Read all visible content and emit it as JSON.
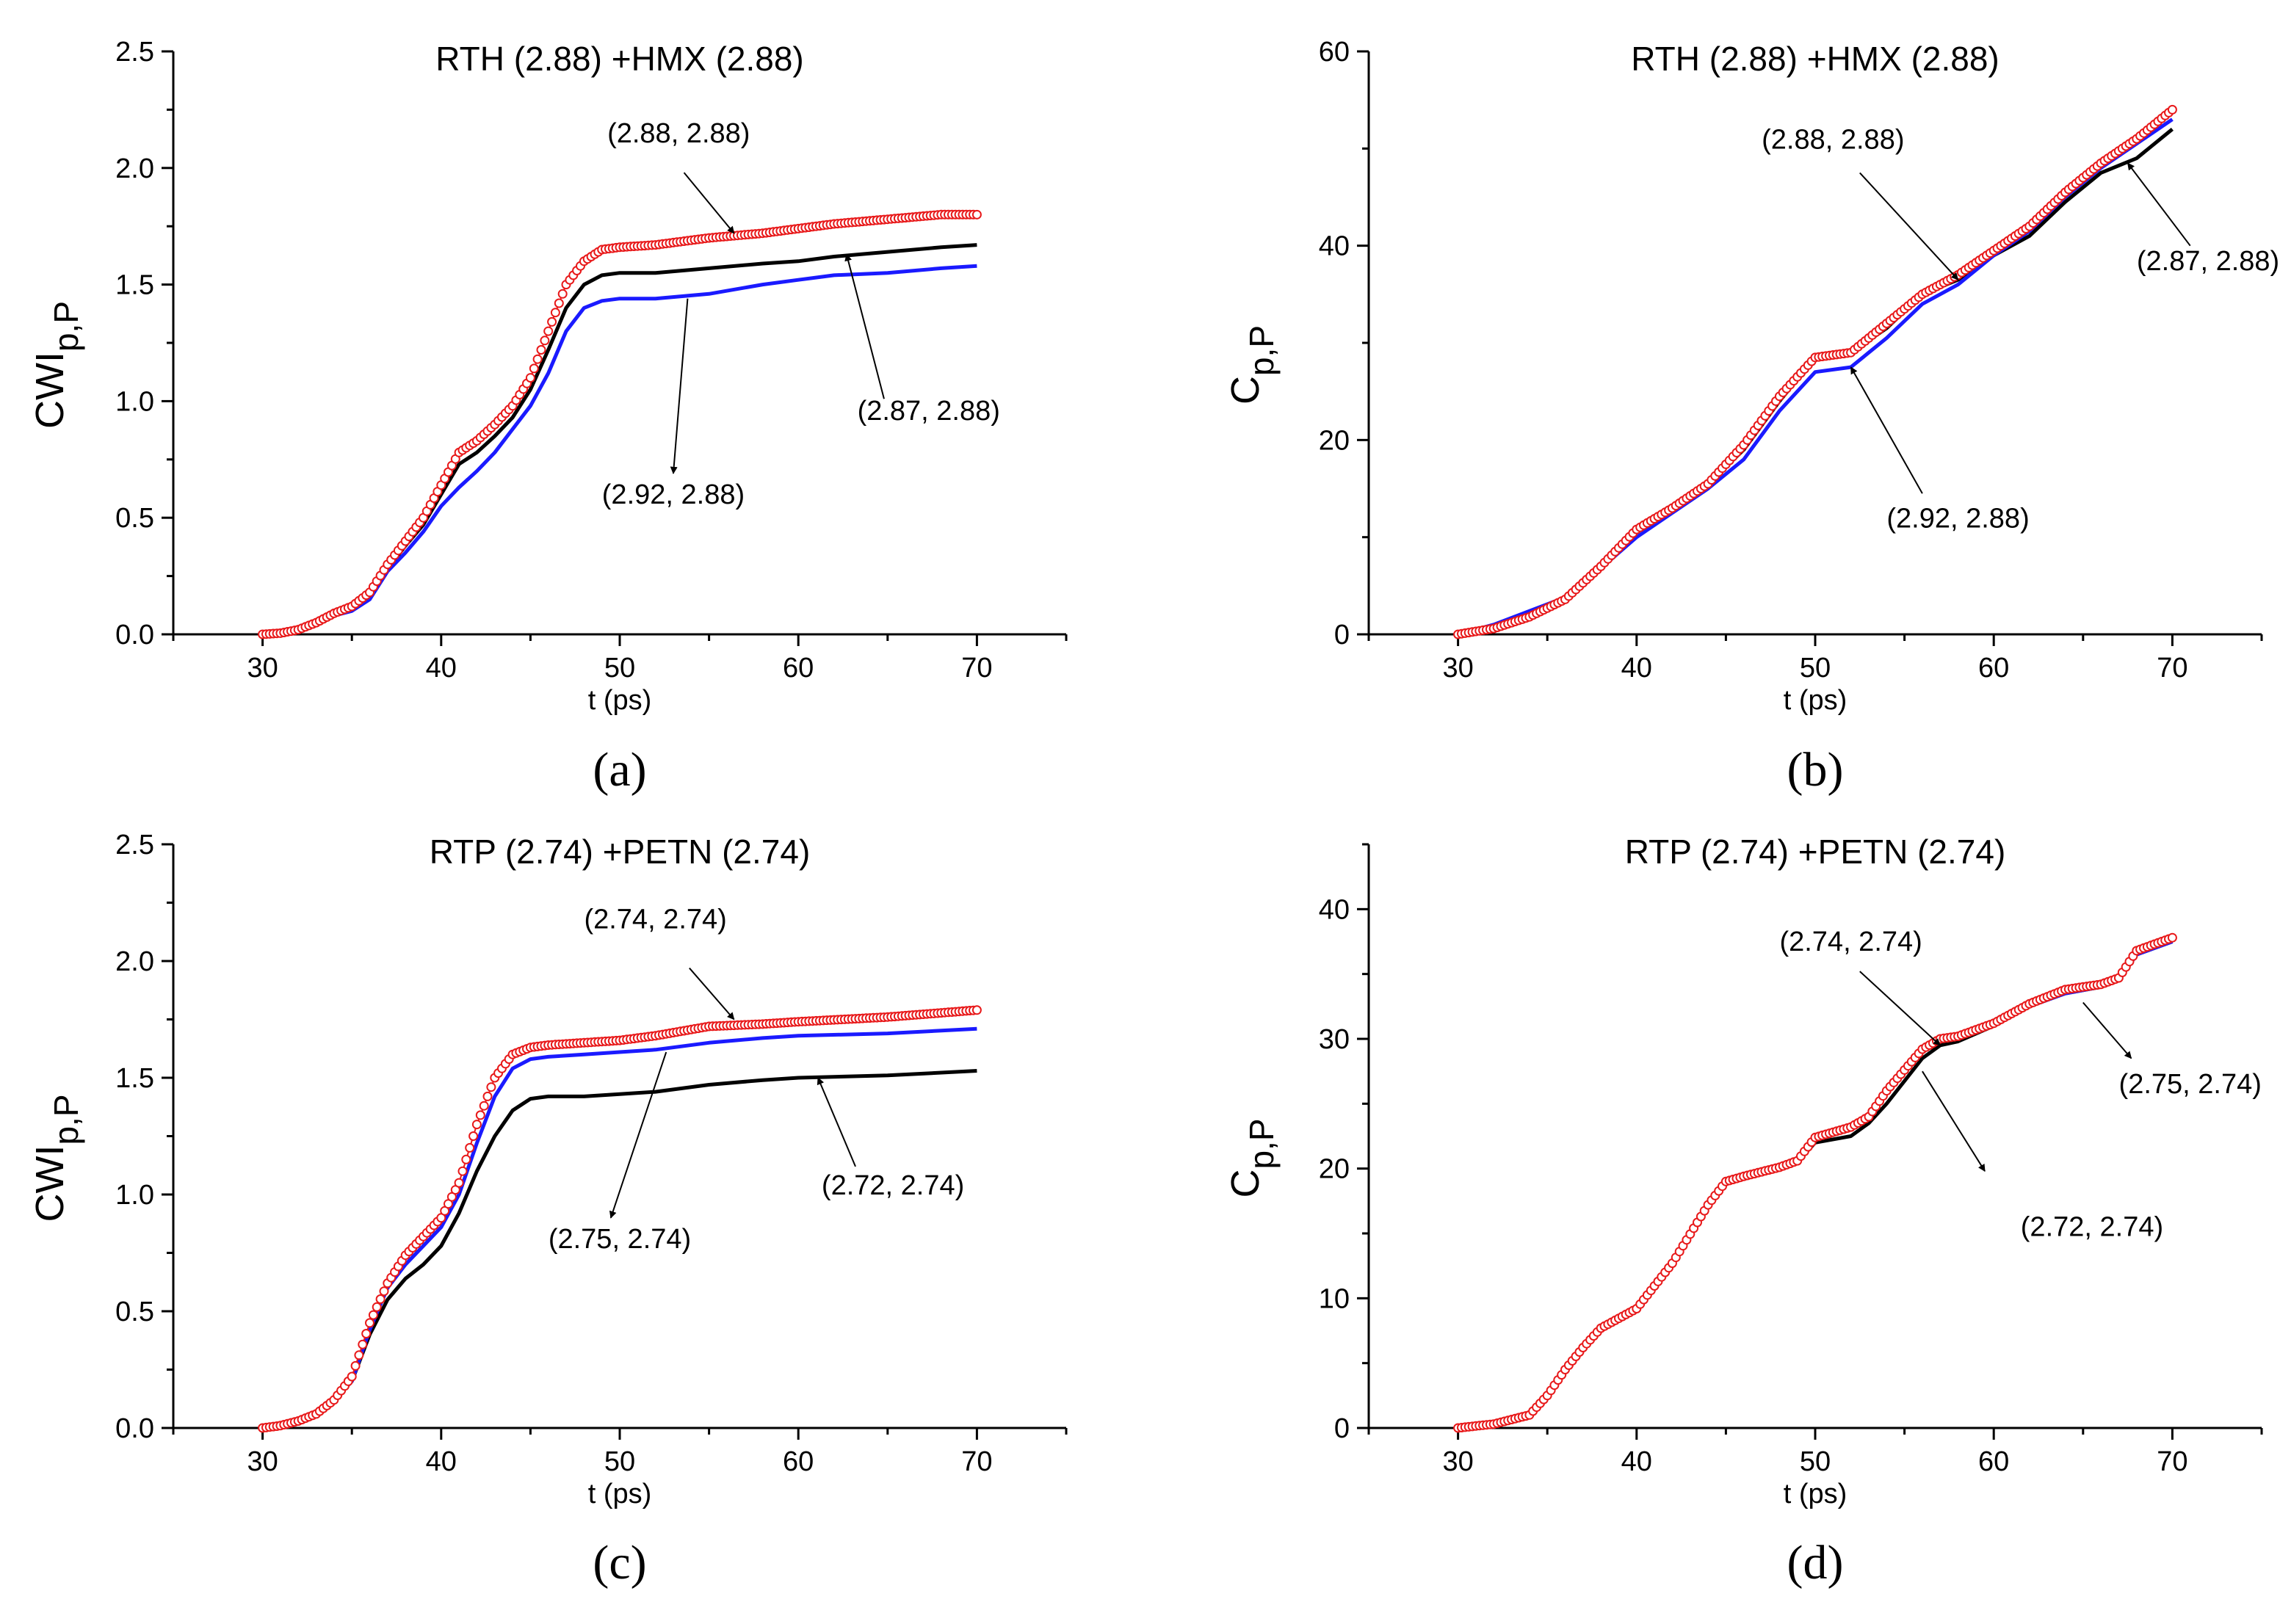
{
  "colors": {
    "black": "#000000",
    "blue": "#1a1aff",
    "red": "#e8191a",
    "axis": "#000000"
  },
  "chart_data": [
    {
      "panel": "(a)",
      "type": "line",
      "title": "RTH (2.88) +HMX (2.88)",
      "xlabel": "t (ps)",
      "ylabel": "CWI",
      "ylabel_sub": "p,P",
      "xlim": [
        25,
        75
      ],
      "ylim": [
        0,
        2.5
      ],
      "xticks": [
        30,
        40,
        50,
        60,
        70
      ],
      "yticks": [
        0.0,
        0.5,
        1.0,
        1.5,
        2.0,
        2.5
      ],
      "ytick_labels": [
        "0.0",
        "0.5",
        "1.0",
        "1.5",
        "2.0",
        "2.5"
      ],
      "series": [
        {
          "name": "(2.87, 2.88)",
          "color": "black",
          "marker": "none",
          "x": [
            30,
            31,
            32,
            33,
            34,
            35,
            36,
            37,
            38,
            39,
            40,
            41,
            42,
            43,
            44,
            45,
            46,
            47,
            48,
            49,
            50,
            52,
            55,
            58,
            60,
            62,
            65,
            68,
            70
          ],
          "y": [
            0,
            0.005,
            0.02,
            0.05,
            0.08,
            0.11,
            0.17,
            0.28,
            0.38,
            0.47,
            0.6,
            0.73,
            0.78,
            0.85,
            0.93,
            1.05,
            1.22,
            1.4,
            1.5,
            1.54,
            1.55,
            1.55,
            1.57,
            1.59,
            1.6,
            1.62,
            1.64,
            1.66,
            1.67
          ]
        },
        {
          "name": "(2.92, 2.88)",
          "color": "blue",
          "marker": "none",
          "x": [
            30,
            31,
            32,
            33,
            34,
            35,
            36,
            37,
            38,
            39,
            40,
            41,
            42,
            43,
            44,
            45,
            46,
            47,
            48,
            49,
            50,
            52,
            55,
            58,
            60,
            62,
            65,
            68,
            70
          ],
          "y": [
            0,
            0.005,
            0.02,
            0.05,
            0.08,
            0.1,
            0.15,
            0.27,
            0.35,
            0.44,
            0.55,
            0.63,
            0.7,
            0.78,
            0.88,
            0.98,
            1.12,
            1.3,
            1.4,
            1.43,
            1.44,
            1.44,
            1.46,
            1.5,
            1.52,
            1.54,
            1.55,
            1.57,
            1.58
          ]
        },
        {
          "name": "(2.88, 2.88)",
          "color": "red",
          "marker": "circle",
          "x": [
            30,
            31,
            32,
            33,
            34,
            35,
            36,
            37,
            38,
            39,
            40,
            41,
            42,
            43,
            44,
            45,
            46,
            47,
            48,
            49,
            50,
            52,
            55,
            58,
            60,
            62,
            65,
            68,
            70
          ],
          "y": [
            0,
            0.005,
            0.02,
            0.05,
            0.09,
            0.12,
            0.18,
            0.3,
            0.4,
            0.5,
            0.64,
            0.78,
            0.83,
            0.9,
            0.98,
            1.1,
            1.3,
            1.5,
            1.6,
            1.65,
            1.66,
            1.67,
            1.7,
            1.72,
            1.74,
            1.76,
            1.78,
            1.8,
            1.8
          ]
        }
      ],
      "annotations": [
        {
          "text": "(2.88, 2.88)",
          "label_at": [
            53.3,
            2.11
          ],
          "arrow_from": [
            53.6,
            1.98
          ],
          "arrow_to": [
            56.4,
            1.72
          ]
        },
        {
          "text": "(2.87, 2.88)",
          "label_at": [
            67.3,
            0.92
          ],
          "arrow_from": [
            64.8,
            1.01
          ],
          "arrow_to": [
            62.7,
            1.63
          ]
        },
        {
          "text": "(2.92, 2.88)",
          "label_at": [
            53.0,
            0.56
          ],
          "arrow_from": [
            53.8,
            1.44
          ],
          "arrow_to": [
            53.0,
            0.69
          ]
        }
      ]
    },
    {
      "panel": "(b)",
      "type": "line",
      "title": "RTH (2.88) +HMX (2.88)",
      "xlabel": "t (ps)",
      "ylabel": "C",
      "ylabel_sub": "p,P",
      "xlim": [
        25,
        75
      ],
      "ylim": [
        0,
        60
      ],
      "xticks": [
        30,
        40,
        50,
        60,
        70
      ],
      "yticks": [
        0,
        20,
        40,
        60
      ],
      "ytick_labels": [
        "0",
        "20",
        "40",
        "60"
      ],
      "series": [
        {
          "name": "(2.87, 2.88)",
          "color": "black",
          "marker": "none",
          "x": [
            30,
            32,
            34,
            36,
            38,
            40,
            42,
            44,
            46,
            48,
            50,
            52,
            54,
            56,
            58,
            60,
            62,
            64,
            66,
            68,
            70
          ],
          "y": [
            0,
            0.8,
            2.0,
            3.8,
            6.8,
            10.5,
            13.0,
            15.5,
            19.0,
            24.0,
            28.5,
            29.0,
            31.5,
            35.0,
            36.5,
            39.0,
            41.0,
            44.5,
            47.5,
            49.0,
            52.0
          ]
        },
        {
          "name": "(2.92, 2.88)",
          "color": "blue",
          "marker": "none",
          "x": [
            30,
            32,
            34,
            36,
            38,
            40,
            42,
            44,
            46,
            48,
            50,
            52,
            54,
            56,
            58,
            60,
            62,
            64,
            66,
            68,
            70
          ],
          "y": [
            0,
            1.0,
            2.4,
            3.8,
            6.8,
            10.0,
            12.5,
            15.0,
            18.0,
            23.0,
            27.0,
            27.5,
            30.5,
            34.0,
            36.0,
            39.0,
            41.5,
            45.0,
            48.0,
            50.5,
            53.0
          ]
        },
        {
          "name": "(2.88, 2.88)",
          "color": "red",
          "marker": "circle",
          "x": [
            30,
            32,
            34,
            36,
            38,
            40,
            42,
            44,
            46,
            48,
            50,
            52,
            54,
            56,
            58,
            60,
            62,
            64,
            66,
            68,
            70
          ],
          "y": [
            0,
            0.6,
            1.8,
            3.6,
            7.0,
            10.8,
            13.0,
            15.5,
            19.5,
            24.5,
            28.5,
            29.0,
            32.0,
            35.0,
            37.0,
            39.5,
            42.0,
            45.5,
            48.5,
            51.0,
            54.0
          ]
        }
      ],
      "annotations": [
        {
          "text": "(2.88, 2.88)",
          "label_at": [
            51.0,
            50.0
          ],
          "arrow_from": [
            52.5,
            47.5
          ],
          "arrow_to": [
            58.0,
            36.5
          ]
        },
        {
          "text": "(2.87, 2.88)",
          "label_at": [
            72.0,
            37.5
          ],
          "arrow_from": [
            71.0,
            40.0
          ],
          "arrow_to": [
            67.5,
            48.5
          ]
        },
        {
          "text": "(2.92, 2.88)",
          "label_at": [
            58.0,
            11.0
          ],
          "arrow_from": [
            56.0,
            14.5
          ],
          "arrow_to": [
            52.0,
            27.5
          ]
        }
      ]
    },
    {
      "panel": "(c)",
      "type": "line",
      "title": "RTP (2.74) +PETN (2.74)",
      "xlabel": "t (ps)",
      "ylabel": "CWI",
      "ylabel_sub": "p,P",
      "xlim": [
        25,
        75
      ],
      "ylim": [
        0,
        2.5
      ],
      "xticks": [
        30,
        40,
        50,
        60,
        70
      ],
      "yticks": [
        0.0,
        0.5,
        1.0,
        1.5,
        2.0,
        2.5
      ],
      "ytick_labels": [
        "0.0",
        "0.5",
        "1.0",
        "1.5",
        "2.0",
        "2.5"
      ],
      "series": [
        {
          "name": "(2.72, 2.74)",
          "color": "black",
          "marker": "none",
          "x": [
            30,
            31,
            32,
            33,
            34,
            35,
            36,
            37,
            38,
            39,
            40,
            41,
            42,
            43,
            44,
            45,
            46,
            48,
            50,
            52,
            55,
            58,
            60,
            65,
            70
          ],
          "y": [
            0,
            0.01,
            0.03,
            0.06,
            0.12,
            0.2,
            0.4,
            0.55,
            0.64,
            0.7,
            0.78,
            0.92,
            1.1,
            1.25,
            1.36,
            1.41,
            1.42,
            1.42,
            1.43,
            1.44,
            1.47,
            1.49,
            1.5,
            1.51,
            1.53
          ]
        },
        {
          "name": "(2.75, 2.74)",
          "color": "blue",
          "marker": "none",
          "x": [
            30,
            31,
            32,
            33,
            34,
            35,
            36,
            37,
            38,
            39,
            40,
            41,
            42,
            43,
            44,
            45,
            46,
            48,
            50,
            52,
            55,
            58,
            60,
            65,
            70
          ],
          "y": [
            0,
            0.01,
            0.03,
            0.06,
            0.12,
            0.2,
            0.42,
            0.6,
            0.7,
            0.78,
            0.86,
            1.0,
            1.22,
            1.42,
            1.54,
            1.58,
            1.59,
            1.6,
            1.61,
            1.62,
            1.65,
            1.67,
            1.68,
            1.69,
            1.71
          ]
        },
        {
          "name": "(2.74, 2.74)",
          "color": "red",
          "marker": "circle",
          "x": [
            30,
            31,
            32,
            33,
            34,
            35,
            36,
            37,
            38,
            39,
            40,
            41,
            42,
            43,
            44,
            45,
            46,
            48,
            50,
            52,
            55,
            58,
            60,
            65,
            70
          ],
          "y": [
            0,
            0.01,
            0.03,
            0.06,
            0.12,
            0.22,
            0.45,
            0.62,
            0.74,
            0.82,
            0.9,
            1.05,
            1.3,
            1.5,
            1.6,
            1.63,
            1.64,
            1.65,
            1.66,
            1.68,
            1.72,
            1.73,
            1.74,
            1.76,
            1.79
          ]
        }
      ],
      "annotations": [
        {
          "text": "(2.74, 2.74)",
          "label_at": [
            52.0,
            2.14
          ],
          "arrow_from": [
            53.9,
            1.97
          ],
          "arrow_to": [
            56.4,
            1.75
          ]
        },
        {
          "text": "(2.72, 2.74)",
          "label_at": [
            65.3,
            1.0
          ],
          "arrow_from": [
            63.2,
            1.12
          ],
          "arrow_to": [
            61.1,
            1.5
          ]
        },
        {
          "text": "(2.75, 2.74)",
          "label_at": [
            50.0,
            0.77
          ],
          "arrow_from": [
            52.6,
            1.61
          ],
          "arrow_to": [
            49.5,
            0.9
          ]
        }
      ]
    },
    {
      "panel": "(d)",
      "type": "line",
      "title": "RTP (2.74) +PETN (2.74)",
      "xlabel": "t (ps)",
      "ylabel": "C",
      "ylabel_sub": "p,P",
      "xlim": [
        25,
        75
      ],
      "ylim": [
        0,
        45
      ],
      "xticks": [
        30,
        40,
        50,
        60,
        70
      ],
      "yticks": [
        0,
        10,
        20,
        30,
        40
      ],
      "ytick_labels": [
        "0",
        "10",
        "20",
        "30",
        "40"
      ],
      "series": [
        {
          "name": "(2.72, 2.74)",
          "color": "black",
          "marker": "none",
          "x": [
            30,
            32,
            34,
            35,
            36,
            37,
            38,
            40,
            42,
            44,
            45,
            46,
            48,
            49,
            50,
            52,
            53,
            54,
            56,
            57,
            58,
            60,
            62,
            64,
            66,
            67,
            68,
            70
          ],
          "y": [
            0,
            0.3,
            1.0,
            2.5,
            4.5,
            6.0,
            7.5,
            9.0,
            12.5,
            17.0,
            18.8,
            19.3,
            20.0,
            20.5,
            22.0,
            22.5,
            23.5,
            25.0,
            28.5,
            29.5,
            29.8,
            31.0,
            32.5,
            33.5,
            34.0,
            34.5,
            36.5,
            37.5
          ]
        },
        {
          "name": "(2.75, 2.74)",
          "color": "blue",
          "marker": "none",
          "x": [
            30,
            32,
            34,
            35,
            36,
            37,
            38,
            40,
            42,
            44,
            45,
            46,
            48,
            49,
            50,
            52,
            53,
            54,
            56,
            57,
            58,
            60,
            62,
            64,
            66,
            67,
            68,
            70
          ],
          "y": [
            0,
            0.3,
            1.0,
            2.5,
            4.5,
            6.0,
            7.5,
            9.0,
            12.5,
            17.0,
            18.8,
            19.3,
            20.0,
            20.5,
            22.2,
            23.0,
            24.0,
            25.8,
            29.0,
            29.8,
            30.0,
            31.0,
            32.5,
            33.5,
            34.0,
            34.5,
            36.5,
            37.5
          ]
        },
        {
          "name": "(2.74, 2.74)",
          "color": "red",
          "marker": "circle",
          "x": [
            30,
            32,
            34,
            35,
            36,
            37,
            38,
            40,
            42,
            44,
            45,
            46,
            48,
            49,
            50,
            52,
            53,
            54,
            56,
            57,
            58,
            60,
            62,
            64,
            66,
            67,
            68,
            70
          ],
          "y": [
            0,
            0.3,
            1.0,
            2.5,
            4.5,
            6.2,
            7.7,
            9.2,
            12.7,
            17.2,
            19.0,
            19.4,
            20.1,
            20.6,
            22.4,
            23.2,
            24.0,
            26.0,
            29.2,
            30.0,
            30.2,
            31.2,
            32.7,
            33.8,
            34.2,
            34.7,
            36.8,
            37.8
          ]
        }
      ],
      "annotations": [
        {
          "text": "(2.74, 2.74)",
          "label_at": [
            52.0,
            36.8
          ],
          "arrow_from": [
            52.5,
            35.2
          ],
          "arrow_to": [
            57.0,
            29.5
          ]
        },
        {
          "text": "(2.75, 2.74)",
          "label_at": [
            71.0,
            25.8
          ],
          "arrow_from": [
            65.0,
            32.8
          ],
          "arrow_to": [
            67.7,
            28.5
          ]
        },
        {
          "text": "(2.72, 2.74)",
          "label_at": [
            65.5,
            14.8
          ],
          "arrow_from": [
            56.0,
            27.5
          ],
          "arrow_to": [
            59.5,
            19.8
          ]
        }
      ]
    }
  ]
}
